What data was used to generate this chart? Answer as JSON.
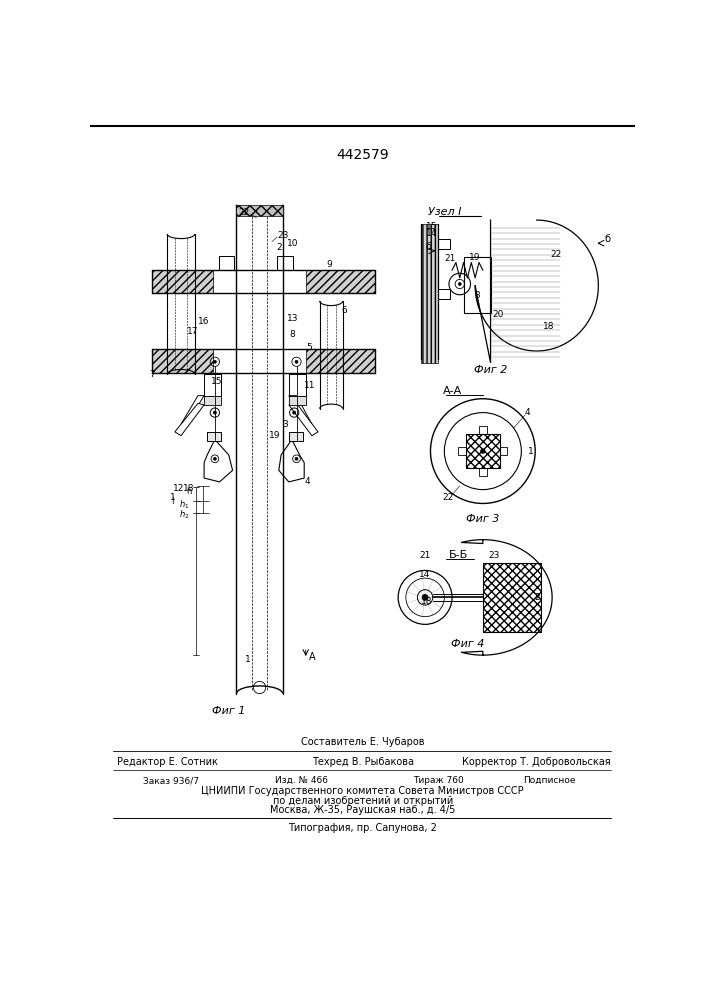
{
  "patent_number": "442579",
  "background_color": "#ffffff",
  "fig_width": 7.07,
  "fig_height": 10.0,
  "footer": {
    "compiler": "Составитель Е. Чубаров",
    "editor": "Редактор Е. Сотник",
    "techred": "Техред В. Рыбакова",
    "corrector": "Корректор Т. Добровольская",
    "order": "Заказ 936/7",
    "edition": "Изд. № 466",
    "circulation": "Тираж 760",
    "subscription": "Подписное",
    "org_line1": "ЦНИИПИ Государственного комитета Совета Министров СССР",
    "org_line2": "по делам изобретений и открытий",
    "org_line3": "Москва, Ж-35, Раушская наб., д. 4/5",
    "print_line": "Типография, пр. Сапунова, 2"
  },
  "fig_labels": {
    "fig1": "Фиг 1",
    "fig2": "Фиг 2",
    "fig3": "Фиг 3",
    "fig4": "Фиг 4",
    "node1": "Узел I",
    "sectAA": "А-А",
    "sectBB": "Б-Б"
  }
}
